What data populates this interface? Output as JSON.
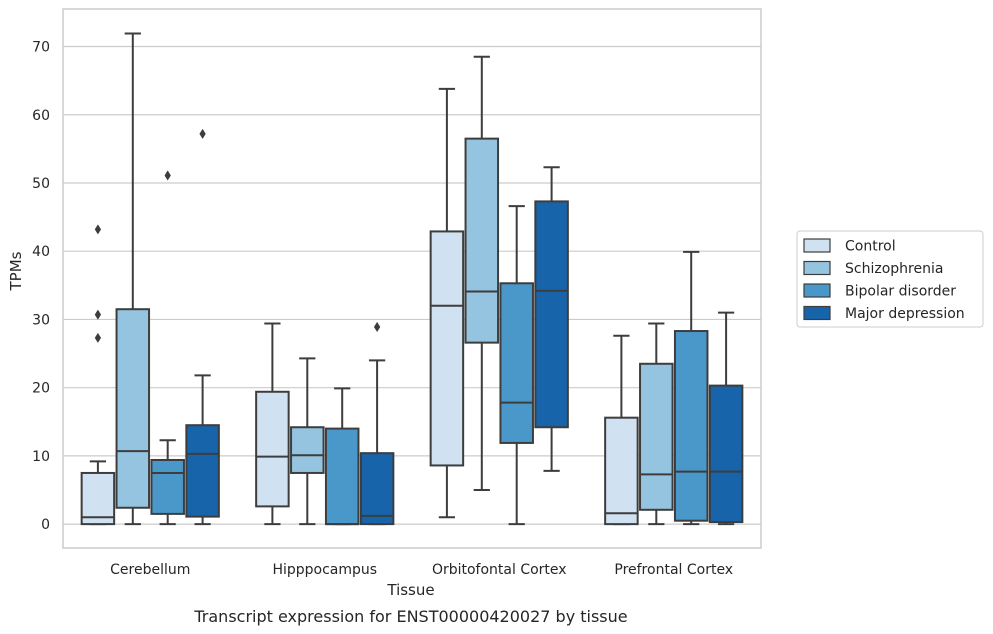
{
  "chart_data": {
    "type": "box",
    "xlabel": "Tissue",
    "ylabel": "TPMs",
    "caption": "Transcript expression for ENST00000420027 by tissue",
    "ylim": [
      -3.5,
      75.5
    ],
    "yticks": [
      0,
      10,
      20,
      30,
      40,
      50,
      60,
      70
    ],
    "grid": true,
    "legend_position": "right",
    "categories": [
      "Cerebellum",
      "Hipppocampus",
      "Orbitofontal Cortex",
      "Prefrontal Cortex"
    ],
    "series": [
      {
        "name": "Control",
        "color": "#d0e1f2",
        "boxes": [
          {
            "whislo": 0,
            "q1": 0,
            "med": 1.0,
            "q3": 7.5,
            "whishi": 9.2,
            "fliers": [
              27.3,
              30.7,
              43.2
            ]
          },
          {
            "whislo": 0,
            "q1": 2.6,
            "med": 9.9,
            "q3": 19.4,
            "whishi": 29.4,
            "fliers": []
          },
          {
            "whislo": 1.0,
            "q1": 8.6,
            "med": 32.0,
            "q3": 42.9,
            "whishi": 63.8,
            "fliers": []
          },
          {
            "whislo": 0,
            "q1": 0,
            "med": 1.6,
            "q3": 15.6,
            "whishi": 27.6,
            "fliers": []
          }
        ]
      },
      {
        "name": "Schizophrenia",
        "color": "#94c4df",
        "boxes": [
          {
            "whislo": 0,
            "q1": 2.4,
            "med": 10.7,
            "q3": 31.5,
            "whishi": 71.9,
            "fliers": []
          },
          {
            "whislo": 0,
            "q1": 7.5,
            "med": 10.1,
            "q3": 14.2,
            "whishi": 24.3,
            "fliers": []
          },
          {
            "whislo": 5.0,
            "q1": 26.6,
            "med": 34.1,
            "q3": 56.5,
            "whishi": 68.5,
            "fliers": []
          },
          {
            "whislo": 0,
            "q1": 2.1,
            "med": 7.3,
            "q3": 23.5,
            "whishi": 29.4,
            "fliers": []
          }
        ]
      },
      {
        "name": "Bipolar disorder",
        "color": "#4a98c9",
        "boxes": [
          {
            "whislo": 0,
            "q1": 1.5,
            "med": 7.5,
            "q3": 9.4,
            "whishi": 12.3,
            "fliers": [
              51.1
            ]
          },
          {
            "whislo": 0,
            "q1": 0,
            "med": 0,
            "q3": 14.0,
            "whishi": 19.9,
            "fliers": []
          },
          {
            "whislo": 0,
            "q1": 11.9,
            "med": 17.8,
            "q3": 35.3,
            "whishi": 46.6,
            "fliers": []
          },
          {
            "whislo": 0,
            "q1": 0.5,
            "med": 7.7,
            "q3": 28.3,
            "whishi": 39.9,
            "fliers": []
          }
        ]
      },
      {
        "name": "Major depression",
        "color": "#1764ab",
        "boxes": [
          {
            "whislo": 0,
            "q1": 1.1,
            "med": 10.3,
            "q3": 14.5,
            "whishi": 21.8,
            "fliers": [
              57.2
            ]
          },
          {
            "whislo": 0,
            "q1": 0,
            "med": 1.2,
            "q3": 10.4,
            "whishi": 24.0,
            "fliers": [
              28.9
            ]
          },
          {
            "whislo": 7.8,
            "q1": 14.2,
            "med": 34.2,
            "q3": 47.3,
            "whishi": 52.3,
            "fliers": []
          },
          {
            "whislo": 0,
            "q1": 0.3,
            "med": 7.7,
            "q3": 20.3,
            "whishi": 31.0,
            "fliers": []
          }
        ]
      }
    ]
  }
}
